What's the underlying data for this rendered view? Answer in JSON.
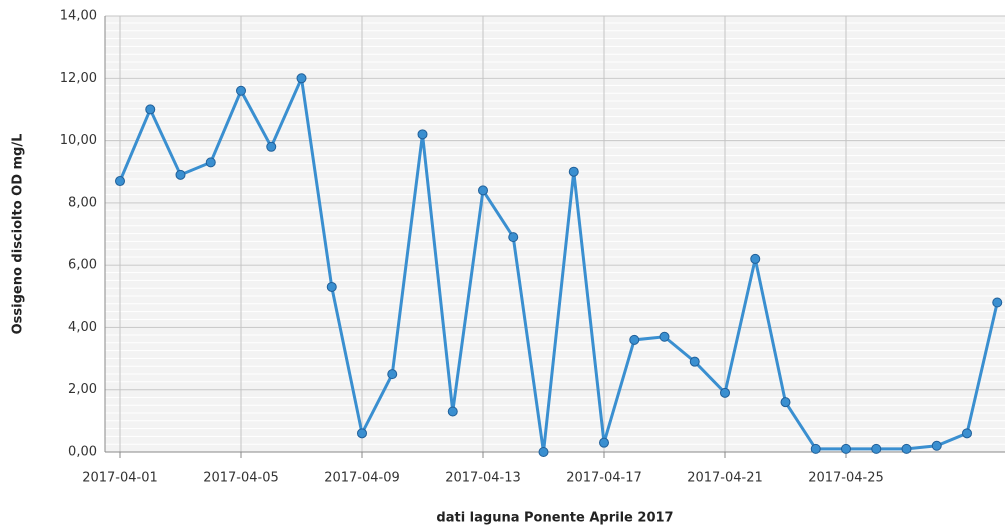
{
  "chart_data": {
    "type": "line",
    "x_label": "dati laguna Ponente Aprile 2017",
    "y_label": "Ossigeno disciolto OD mg/L",
    "x": [
      "2017-04-01",
      "2017-04-02",
      "2017-04-03",
      "2017-04-04",
      "2017-04-05",
      "2017-04-06",
      "2017-04-07",
      "2017-04-08",
      "2017-04-09",
      "2017-04-10",
      "2017-04-11",
      "2017-04-12",
      "2017-04-13",
      "2017-04-14",
      "2017-04-15",
      "2017-04-16",
      "2017-04-17",
      "2017-04-18",
      "2017-04-19",
      "2017-04-20",
      "2017-04-21",
      "2017-04-22",
      "2017-04-23",
      "2017-04-24",
      "2017-04-25",
      "2017-04-26",
      "2017-04-27",
      "2017-04-28",
      "2017-04-29",
      "2017-04-30"
    ],
    "series": [
      {
        "color": "#3a8fd0",
        "values": [
          8.7,
          11.0,
          8.9,
          9.3,
          11.6,
          9.8,
          12.0,
          5.3,
          0.6,
          2.5,
          10.2,
          1.3,
          8.4,
          6.9,
          0.0,
          9.0,
          0.3,
          3.6,
          3.7,
          2.9,
          1.9,
          6.2,
          1.6,
          0.1,
          0.1,
          0.1,
          0.1,
          0.2,
          0.6,
          4.8
        ]
      }
    ],
    "xticks": [
      "2017-04-01",
      "2017-04-05",
      "2017-04-09",
      "2017-04-13",
      "2017-04-17",
      "2017-04-21",
      "2017-04-25"
    ],
    "ylim": [
      0,
      14
    ],
    "yticks": [
      {
        "value": 0,
        "label": "0,00"
      },
      {
        "value": 2,
        "label": "2,00"
      },
      {
        "value": 4,
        "label": "4,00"
      },
      {
        "value": 6,
        "label": "6,00"
      },
      {
        "value": 8,
        "label": "8,00"
      },
      {
        "value": 10,
        "label": "10,00"
      },
      {
        "value": 12,
        "label": "12,00"
      },
      {
        "value": 14,
        "label": "14,00"
      }
    ],
    "grid": true
  }
}
